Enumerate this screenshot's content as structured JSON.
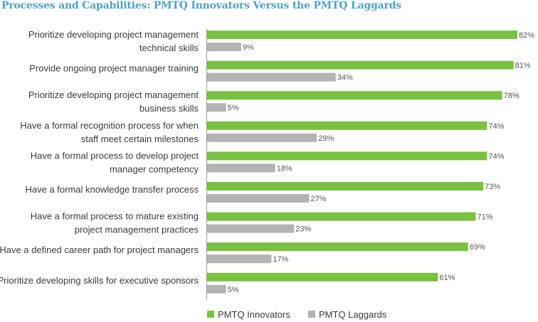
{
  "chart_data": {
    "type": "bar",
    "orientation": "horizontal",
    "title": "Processes and Capabilities: PMTQ Innovators Versus the PMTQ Laggards",
    "categories": [
      [
        "Prioritize developing project management",
        "technical skills"
      ],
      [
        "Provide ongoing project manager training"
      ],
      [
        "Prioritize developing project management",
        "business skills"
      ],
      [
        "Have a formal recognition process for when",
        "staff meet certain milestones"
      ],
      [
        "Have a formal process to develop project",
        "manager competency"
      ],
      [
        "Have a formal knowledge transfer process"
      ],
      [
        "Have a formal process to mature existing",
        "project management practices"
      ],
      [
        "Have a defined career path for project managers"
      ],
      [
        "Prioritize developing skills for executive sponsors"
      ]
    ],
    "series": [
      {
        "name": "PMTQ Innovators",
        "color": "#7ac142",
        "values": [
          82,
          81,
          78,
          74,
          74,
          73,
          71,
          69,
          61
        ],
        "labels": [
          "82%",
          "81%",
          "78%",
          "74%",
          "74%",
          "73%",
          "71%",
          "69%",
          "61%"
        ]
      },
      {
        "name": "PMTQ Laggards",
        "color": "#b3b3b3",
        "values": [
          9,
          34,
          5,
          29,
          18,
          27,
          23,
          17,
          5
        ],
        "labels": [
          "9%",
          "34%",
          "5%",
          "29%",
          "18%",
          "27%",
          "23%",
          "17%",
          "5%"
        ]
      }
    ],
    "xlim": [
      0,
      82
    ],
    "legend_position": "bottom",
    "grid": false
  }
}
